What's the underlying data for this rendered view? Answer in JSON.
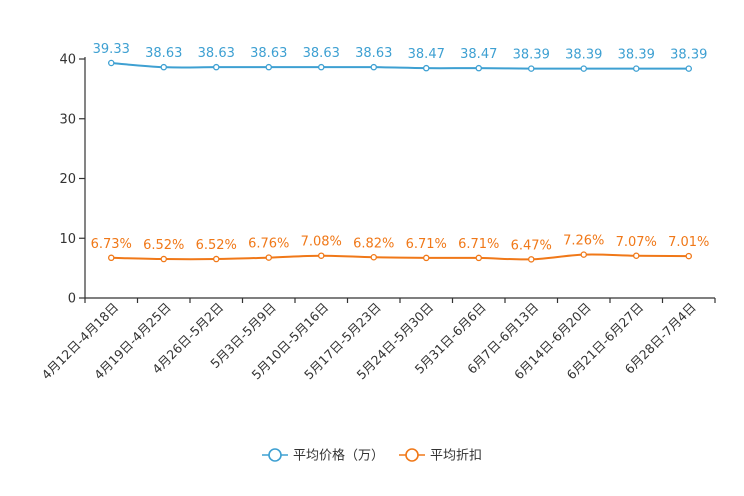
{
  "chart_data": {
    "type": "line",
    "title": "",
    "xlabel": "",
    "ylabel": "",
    "ylim": [
      0,
      40
    ],
    "yticks": [
      0,
      10,
      20,
      30,
      40
    ],
    "grid": false,
    "legend_position": "bottom-center",
    "categories": [
      "4月12日-4月18日",
      "4月19日-4月25日",
      "4月26日-5月2日",
      "5月3日-5月9日",
      "5月10日-5月16日",
      "5月17日-5月23日",
      "5月24日-5月30日",
      "5月31日-6月6日",
      "6月7日-6月13日",
      "6月14日-6月20日",
      "6月21日-6月27日",
      "6月28日-7月4日"
    ],
    "series": [
      {
        "name": "平均价格（万）",
        "color": "#3ea0d2",
        "values": [
          39.33,
          38.63,
          38.63,
          38.63,
          38.63,
          38.63,
          38.47,
          38.47,
          38.39,
          38.39,
          38.39,
          38.39
        ],
        "labels": [
          "39.33",
          "38.63",
          "38.63",
          "38.63",
          "38.63",
          "38.63",
          "38.47",
          "38.47",
          "38.39",
          "38.39",
          "38.39",
          "38.39"
        ]
      },
      {
        "name": "平均折扣",
        "color": "#f07818",
        "values": [
          6.73,
          6.52,
          6.52,
          6.76,
          7.08,
          6.82,
          6.71,
          6.71,
          6.47,
          7.26,
          7.07,
          7.01
        ],
        "labels": [
          "6.73%",
          "6.52%",
          "6.52%",
          "6.76%",
          "7.08%",
          "6.82%",
          "6.71%",
          "6.71%",
          "6.47%",
          "7.26%",
          "7.07%",
          "7.01%"
        ]
      }
    ]
  }
}
